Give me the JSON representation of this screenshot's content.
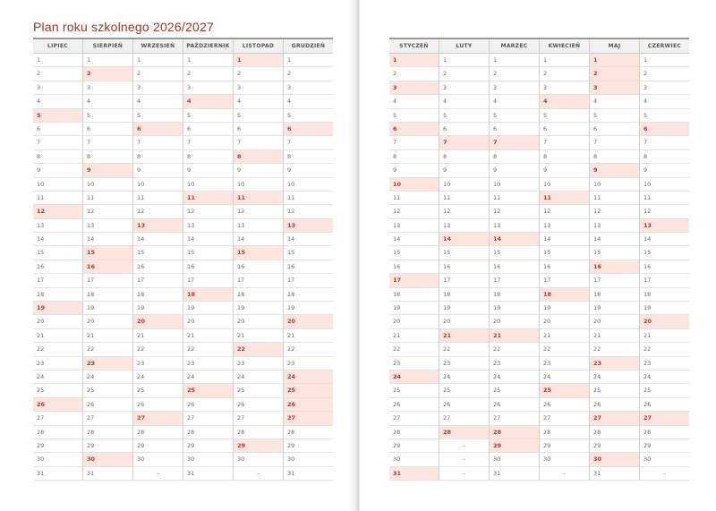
{
  "title": "Plan roku szkolnego 2026/2027",
  "empty_label": "–",
  "colors": {
    "accent": "#a3322c",
    "highlight": "#fbe5de"
  },
  "left_months": [
    {
      "name": "LIPIEC",
      "days": 31,
      "highlighted": [
        5,
        12,
        19,
        26
      ]
    },
    {
      "name": "SIERPIEŃ",
      "days": 31,
      "highlighted": [
        2,
        9,
        15,
        16,
        23,
        30
      ]
    },
    {
      "name": "WRZESIEŃ",
      "days": 30,
      "highlighted": [
        6,
        13,
        20,
        27
      ]
    },
    {
      "name": "PAŹDZIERNIK",
      "days": 31,
      "highlighted": [
        4,
        11,
        18,
        25
      ]
    },
    {
      "name": "LISTOPAD",
      "days": 30,
      "highlighted": [
        1,
        8,
        11,
        15,
        22,
        29
      ]
    },
    {
      "name": "GRUDZIEŃ",
      "days": 31,
      "highlighted": [
        6,
        13,
        20,
        24,
        25,
        26,
        27
      ]
    }
  ],
  "right_months": [
    {
      "name": "STYCZEŃ",
      "days": 31,
      "highlighted": [
        1,
        3,
        6,
        10,
        17,
        24,
        31
      ]
    },
    {
      "name": "LUTY",
      "days": 28,
      "highlighted": [
        7,
        14,
        21,
        28
      ]
    },
    {
      "name": "MARZEC",
      "days": 31,
      "highlighted": [
        7,
        14,
        21,
        28,
        29
      ]
    },
    {
      "name": "KWIECIEŃ",
      "days": 30,
      "highlighted": [
        4,
        11,
        18,
        25
      ]
    },
    {
      "name": "MAJ",
      "days": 31,
      "highlighted": [
        1,
        2,
        3,
        9,
        16,
        23,
        27,
        30
      ]
    },
    {
      "name": "CZERWIEC",
      "days": 30,
      "highlighted": [
        6,
        13,
        20,
        27
      ]
    }
  ]
}
